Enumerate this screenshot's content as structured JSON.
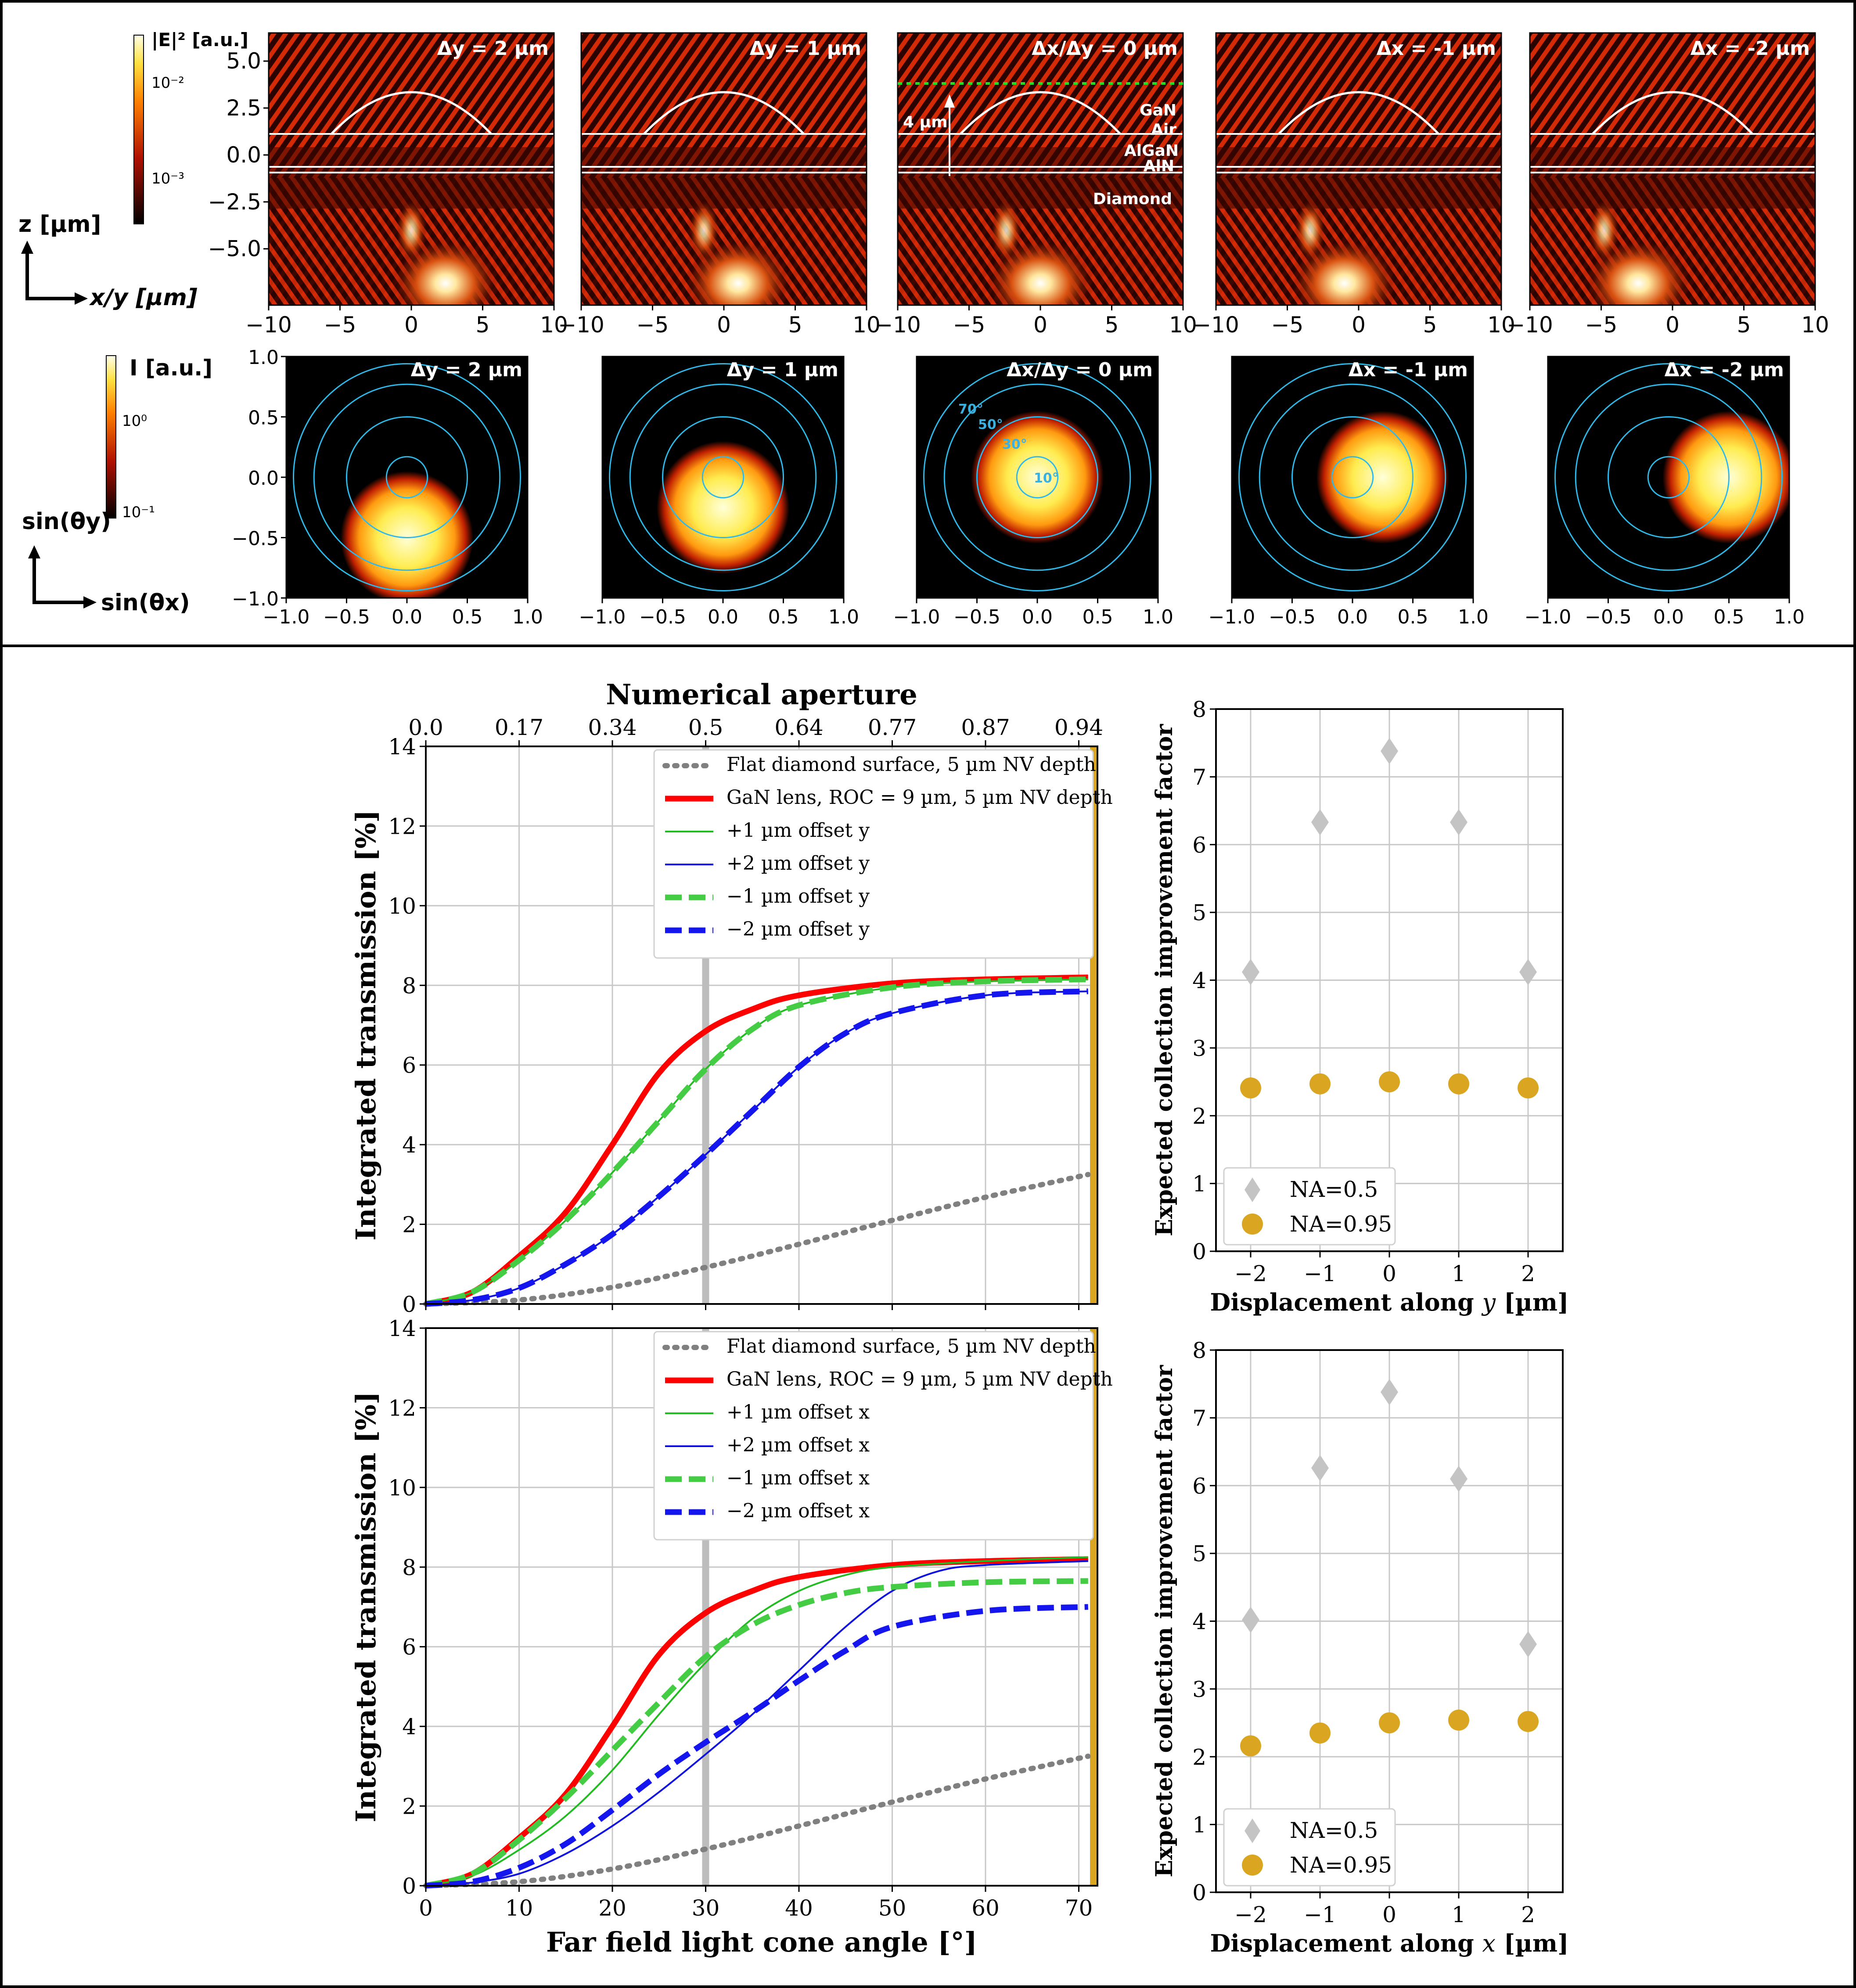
{
  "colors": {
    "flat": "#808080",
    "lens": "#ff0000",
    "plus1": "#22bb22",
    "plus2": "#1010dd",
    "minus1": "#44cc44",
    "minus2": "#1515ee",
    "na05": "#c4c4c4",
    "na095": "#daa520",
    "ring": "#30b8e8",
    "band": "#daa520"
  },
  "top_panel": {
    "field_maps": {
      "colorbar_label": "|E|² [a.u.]",
      "colorbar_ticks": [
        "10⁻²",
        "10⁻³"
      ],
      "ylabel": "z [µm]",
      "xlabel": "x/y [µm]",
      "yticks": [
        "5.0",
        "2.5",
        "0.0",
        "−2.5",
        "−5.0"
      ],
      "xticks": [
        "−10",
        "−5",
        "0",
        "5",
        "10"
      ],
      "titles": [
        "Δy = 2 µm",
        "Δy = 1 µm",
        "Δx/Δy = 0 µm",
        "Δx = -1 µm",
        "Δx = -2 µm"
      ],
      "annotations": {
        "height": "4 µm",
        "gan": "GaN",
        "air": "Air",
        "algan": "AlGaN",
        "aln": "AlN",
        "diamond": "Diamond"
      }
    },
    "far_field": {
      "colorbar_label": "I [a.u.]",
      "colorbar_ticks": [
        "10⁰",
        "10⁻¹"
      ],
      "ylabel": "sin(θy)",
      "xlabel": "sin(θx)",
      "yticks": [
        "1.0",
        "0.5",
        "0.0",
        "−0.5",
        "−1.0"
      ],
      "xticks": [
        "−1.0",
        "−0.5",
        "0.0",
        "0.5",
        "1.0"
      ],
      "titles": [
        "Δy = 2 µm",
        "Δy = 1 µm",
        "Δx/Δy = 0 µm",
        "Δx = -1 µm",
        "Δx = -2 µm"
      ],
      "ring_labels": [
        "70°",
        "50°",
        "30°",
        "10°"
      ]
    }
  },
  "chart_data": [
    {
      "type": "line",
      "title": "",
      "top_axis_label": "Numerical aperture",
      "top_ticks": [
        "0.0",
        "0.17",
        "0.34",
        "0.5",
        "0.64",
        "0.77",
        "0.87",
        "0.94"
      ],
      "xlabel": "",
      "ylabel": "Integrated transmission [%]",
      "xlim": [
        0,
        72
      ],
      "ylim": [
        0,
        14
      ],
      "xticks": [
        0,
        10,
        20,
        30,
        40,
        50,
        60,
        70
      ],
      "yticks": [
        0,
        2,
        4,
        6,
        8,
        10,
        12,
        14
      ],
      "vline": 30,
      "grid": true,
      "legend": "top-right",
      "series": [
        {
          "name": "Flat diamond surface, 5 µm NV depth",
          "style": "flat",
          "x": [
            0,
            10,
            20,
            30,
            40,
            50,
            60,
            71
          ],
          "y": [
            0,
            0.1,
            0.42,
            0.92,
            1.5,
            2.1,
            2.68,
            3.25
          ]
        },
        {
          "name": "GaN lens, ROC = 9 µm, 5 µm NV depth",
          "style": "lens",
          "x": [
            0,
            5,
            10,
            15,
            20,
            25,
            30,
            35,
            40,
            50,
            60,
            71
          ],
          "y": [
            0,
            0.3,
            1.2,
            2.3,
            4.0,
            5.8,
            6.85,
            7.4,
            7.75,
            8.05,
            8.15,
            8.2
          ]
        },
        {
          "name": "+1 µm offset y",
          "style": "plus1",
          "x": [
            0,
            5,
            10,
            15,
            20,
            25,
            30,
            35,
            40,
            50,
            60,
            71
          ],
          "y": [
            0,
            0.3,
            1.1,
            2.1,
            3.3,
            4.6,
            5.9,
            6.9,
            7.5,
            7.95,
            8.1,
            8.15
          ]
        },
        {
          "name": "+2 µm offset y",
          "style": "plus2",
          "x": [
            0,
            5,
            10,
            15,
            20,
            25,
            30,
            35,
            40,
            45,
            50,
            60,
            71
          ],
          "y": [
            0,
            0.1,
            0.4,
            1.0,
            1.75,
            2.7,
            3.75,
            4.85,
            5.95,
            6.8,
            7.3,
            7.75,
            7.85
          ]
        },
        {
          "name": "−1 µm offset y",
          "style": "minus1",
          "x": [
            0,
            5,
            10,
            15,
            20,
            25,
            30,
            35,
            40,
            50,
            60,
            71
          ],
          "y": [
            0,
            0.3,
            1.1,
            2.1,
            3.3,
            4.6,
            5.9,
            6.9,
            7.5,
            7.95,
            8.1,
            8.15
          ]
        },
        {
          "name": "−2 µm offset y",
          "style": "minus2",
          "x": [
            0,
            5,
            10,
            15,
            20,
            25,
            30,
            35,
            40,
            45,
            50,
            60,
            71
          ],
          "y": [
            0,
            0.1,
            0.4,
            1.0,
            1.75,
            2.7,
            3.75,
            4.85,
            5.95,
            6.8,
            7.3,
            7.75,
            7.85
          ]
        }
      ]
    },
    {
      "type": "line",
      "xlabel": "Far field light cone angle [°]",
      "ylabel": "Integrated transmission [%]",
      "xlim": [
        0,
        72
      ],
      "ylim": [
        0,
        14
      ],
      "xticks": [
        0,
        10,
        20,
        30,
        40,
        50,
        60,
        70
      ],
      "yticks": [
        0,
        2,
        4,
        6,
        8,
        10,
        12,
        14
      ],
      "vline": 30,
      "grid": true,
      "legend": "top-right",
      "series": [
        {
          "name": "Flat diamond surface, 5 µm NV depth",
          "style": "flat",
          "x": [
            0,
            10,
            20,
            30,
            40,
            50,
            60,
            71
          ],
          "y": [
            0,
            0.1,
            0.42,
            0.92,
            1.5,
            2.1,
            2.68,
            3.25
          ]
        },
        {
          "name": "GaN lens, ROC = 9 µm, 5 µm NV depth",
          "style": "lens",
          "x": [
            0,
            5,
            10,
            15,
            20,
            25,
            30,
            35,
            40,
            50,
            60,
            71
          ],
          "y": [
            0,
            0.3,
            1.2,
            2.3,
            4.0,
            5.8,
            6.85,
            7.4,
            7.75,
            8.05,
            8.15,
            8.2
          ]
        },
        {
          "name": "+1 µm offset x",
          "style": "plus1",
          "x": [
            0,
            5,
            10,
            15,
            20,
            25,
            30,
            35,
            40,
            45,
            50,
            60,
            71
          ],
          "y": [
            0,
            0.25,
            0.9,
            1.75,
            2.9,
            4.3,
            5.6,
            6.7,
            7.4,
            7.8,
            8.0,
            8.15,
            8.25
          ]
        },
        {
          "name": "+2 µm offset x",
          "style": "plus2",
          "x": [
            0,
            5,
            10,
            15,
            20,
            25,
            30,
            35,
            40,
            45,
            50,
            55,
            60,
            71
          ],
          "y": [
            0,
            0.08,
            0.3,
            0.8,
            1.5,
            2.35,
            3.3,
            4.3,
            5.4,
            6.5,
            7.4,
            7.9,
            8.05,
            8.15
          ]
        },
        {
          "name": "−1 µm offset x",
          "style": "minus1",
          "x": [
            0,
            5,
            10,
            15,
            20,
            25,
            30,
            35,
            40,
            45,
            50,
            60,
            71
          ],
          "y": [
            0,
            0.3,
            1.15,
            2.2,
            3.4,
            4.6,
            5.75,
            6.55,
            7.05,
            7.35,
            7.5,
            7.62,
            7.65
          ]
        },
        {
          "name": "−2 µm offset x",
          "style": "minus2",
          "x": [
            0,
            5,
            10,
            15,
            20,
            25,
            30,
            35,
            40,
            45,
            50,
            60,
            71
          ],
          "y": [
            0,
            0.1,
            0.45,
            1.05,
            1.9,
            2.8,
            3.6,
            4.35,
            5.15,
            5.9,
            6.5,
            6.9,
            7.0
          ]
        }
      ]
    },
    {
      "type": "scatter",
      "xlabel_prefix": "Displacement along ",
      "xlabel_var": "y",
      "xlabel_unit": " [µm]",
      "ylabel": "Expected collection improvement factor",
      "xlim": [
        -2.5,
        2.5
      ],
      "ylim": [
        0,
        8
      ],
      "xticks": [
        -2,
        -1,
        0,
        1,
        2
      ],
      "xtick_labels": [
        "−2",
        "−1",
        "0",
        "1",
        "2"
      ],
      "yticks": [
        0,
        1,
        2,
        3,
        4,
        5,
        6,
        7,
        8
      ],
      "grid": true,
      "legend": "bottom-left",
      "series": [
        {
          "name": "NA=0.5",
          "marker": "diamond",
          "x": [
            -2,
            -1,
            0,
            1,
            2
          ],
          "y": [
            4.12,
            6.33,
            7.38,
            6.33,
            4.12
          ]
        },
        {
          "name": "NA=0.95",
          "marker": "circle",
          "x": [
            -2,
            -1,
            0,
            1,
            2
          ],
          "y": [
            2.41,
            2.47,
            2.5,
            2.47,
            2.41
          ]
        }
      ]
    },
    {
      "type": "scatter",
      "xlabel_prefix": "Displacement along ",
      "xlabel_var": "x",
      "xlabel_unit": " [µm]",
      "ylabel": "Expected collection improvement factor",
      "xlim": [
        -2.5,
        2.5
      ],
      "ylim": [
        0,
        8
      ],
      "xticks": [
        -2,
        -1,
        0,
        1,
        2
      ],
      "xtick_labels": [
        "−2",
        "−1",
        "0",
        "1",
        "2"
      ],
      "yticks": [
        0,
        1,
        2,
        3,
        4,
        5,
        6,
        7,
        8
      ],
      "grid": true,
      "legend": "bottom-left",
      "series": [
        {
          "name": "NA=0.5",
          "marker": "diamond",
          "x": [
            -2,
            -1,
            0,
            1,
            2
          ],
          "y": [
            4.02,
            6.26,
            7.38,
            6.1,
            3.66
          ]
        },
        {
          "name": "NA=0.95",
          "marker": "circle",
          "x": [
            -2,
            -1,
            0,
            1,
            2
          ],
          "y": [
            2.16,
            2.35,
            2.5,
            2.54,
            2.52
          ]
        }
      ]
    }
  ]
}
